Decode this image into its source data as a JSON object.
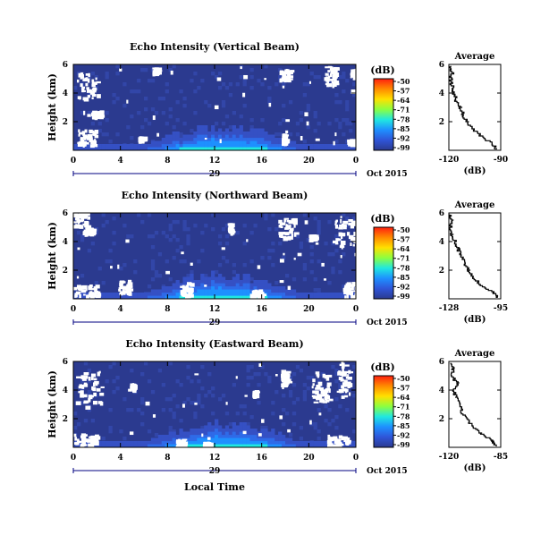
{
  "figure": {
    "xaxis_title": "Local Time",
    "colors": {
      "background": "#2b3a8f",
      "noise": "#3246a8",
      "no_data": "#ffffff",
      "profile_line": "#000000",
      "date_axis": "#000080"
    },
    "colorbar": {
      "unit": "(dB)",
      "ticks": [
        "-50",
        "-57",
        "-64",
        "-71",
        "-78",
        "-85",
        "-92",
        "-99"
      ],
      "stops": [
        "#ff2010",
        "#ff8a00",
        "#ffe000",
        "#8cff40",
        "#20e8e0",
        "#1e90ff",
        "#2f55d8",
        "#2b3a8f"
      ]
    }
  },
  "chart_data": [
    {
      "type": "heatmap",
      "title": "Echo Intensity (Vertical Beam)",
      "ylabel": "Height (km)",
      "yticks": [
        "2",
        "4",
        "6"
      ],
      "ylim": [
        0,
        6
      ],
      "xticks": [
        "0",
        "4",
        "8",
        "12",
        "16",
        "20",
        "0"
      ],
      "xlim": [
        0,
        24
      ],
      "date_day": "29",
      "date_label": "Oct 2015",
      "colorbar": "(dB)",
      "profile": {
        "title": "Average",
        "xlabel": "(dB)",
        "xticks": [
          "-120",
          "-90"
        ],
        "xlim": [
          -120,
          -90
        ],
        "yticks": [
          "2",
          "4",
          "6"
        ],
        "ylim": [
          0,
          6
        ],
        "height_km": [
          0.1,
          0.5,
          1.0,
          1.5,
          2.0,
          2.5,
          3.0,
          3.5,
          4.0,
          4.5,
          5.0,
          5.5,
          5.9
        ],
        "db": [
          -92,
          -95,
          -101,
          -106,
          -109,
          -112,
          -113,
          -116,
          -117,
          -118,
          -119,
          -118,
          -119
        ]
      }
    },
    {
      "type": "heatmap",
      "title": "Echo Intensity (Northward Beam)",
      "ylabel": "Height (km)",
      "yticks": [
        "2",
        "4",
        "6"
      ],
      "ylim": [
        0,
        6
      ],
      "xticks": [
        "0",
        "4",
        "8",
        "12",
        "16",
        "20",
        "0"
      ],
      "xlim": [
        0,
        24
      ],
      "date_day": "29",
      "date_label": "Oct 2015",
      "colorbar": "(dB)",
      "profile": {
        "title": "Average",
        "xlabel": "(dB)",
        "xticks": [
          "-128",
          "-95"
        ],
        "xlim": [
          -128,
          -95
        ],
        "yticks": [
          "2",
          "4",
          "6"
        ],
        "ylim": [
          0,
          6
        ],
        "height_km": [
          0.1,
          0.5,
          1.0,
          1.5,
          2.0,
          2.5,
          3.0,
          3.5,
          4.0,
          4.5,
          5.0,
          5.5,
          5.9
        ],
        "db": [
          -97,
          -100,
          -107,
          -113,
          -115,
          -118,
          -120,
          -122,
          -124,
          -126,
          -127,
          -126,
          -127
        ]
      }
    },
    {
      "type": "heatmap",
      "title": "Echo Intensity (Eastward Beam)",
      "ylabel": "Height (km)",
      "yticks": [
        "2",
        "4",
        "6"
      ],
      "ylim": [
        0,
        6
      ],
      "xticks": [
        "0",
        "4",
        "8",
        "12",
        "16",
        "20",
        "0"
      ],
      "xlim": [
        0,
        24
      ],
      "date_day": "29",
      "date_label": "Oct 2015",
      "colorbar": "(dB)",
      "profile": {
        "title": "Average",
        "xlabel": "(dB)",
        "xticks": [
          "-120",
          "-85"
        ],
        "xlim": [
          -120,
          -85
        ],
        "yticks": [
          "2",
          "4",
          "6"
        ],
        "ylim": [
          0,
          6
        ],
        "height_km": [
          0.1,
          0.5,
          1.0,
          1.5,
          2.0,
          2.5,
          3.0,
          3.5,
          4.0,
          4.5,
          5.0,
          5.5,
          5.9
        ],
        "db": [
          -88,
          -91,
          -98,
          -104,
          -108,
          -111,
          -113,
          -115,
          -117,
          -114,
          -118,
          -117,
          -119
        ]
      }
    }
  ]
}
